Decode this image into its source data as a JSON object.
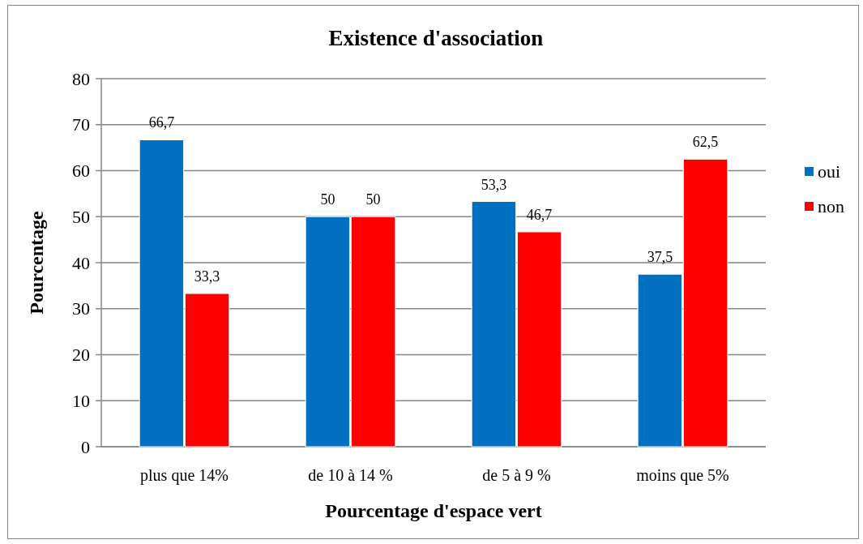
{
  "chart_data": {
    "type": "bar",
    "title": "Existence d'association",
    "xlabel": "Pourcentage d'espace vert",
    "ylabel": "Pourcentage",
    "categories": [
      "plus que 14%",
      "de 10 à 14 %",
      "de 5 à 9 %",
      "moins que 5%"
    ],
    "series": [
      {
        "name": "oui",
        "color": "#0070c0",
        "values": [
          66.7,
          50,
          53.3,
          37.5
        ],
        "value_labels": [
          "66,7",
          "50",
          "53,3",
          "37,5"
        ]
      },
      {
        "name": "non",
        "color": "#ff0000",
        "values": [
          33.3,
          50,
          46.7,
          62.5
        ],
        "value_labels": [
          "33,3",
          "50",
          "46,7",
          "62,5"
        ]
      }
    ],
    "ylim": [
      0,
      80
    ],
    "yticks": [
      0,
      10,
      20,
      30,
      40,
      50,
      60,
      70,
      80
    ],
    "grid": "y",
    "legend": "right"
  }
}
